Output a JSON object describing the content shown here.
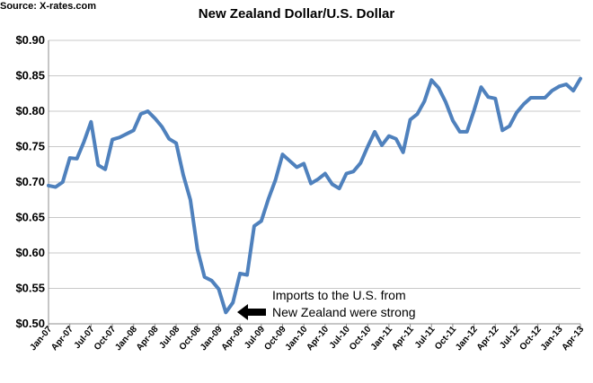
{
  "source": "Source: X-rates.com",
  "chart_data": {
    "type": "line",
    "title": "New Zealand Dollar/U.S. Dollar",
    "xlabel": "",
    "ylabel": "",
    "ylim": [
      0.5,
      0.9
    ],
    "yticks": [
      "$0.90",
      "$0.85",
      "$0.80",
      "$0.75",
      "$0.70",
      "$0.65",
      "$0.60",
      "$0.55",
      "$0.50"
    ],
    "ytick_values": [
      0.9,
      0.85,
      0.8,
      0.75,
      0.7,
      0.65,
      0.6,
      0.55,
      0.5
    ],
    "grid": true,
    "x_tick_labels": [
      "Jan-07",
      "Apr-07",
      "Jul-07",
      "Oct-07",
      "Jan-08",
      "Apr-08",
      "Jul-08",
      "Oct-08",
      "Jan-09",
      "Apr-09",
      "Jul-09",
      "Oct-09",
      "Jan-10",
      "Apr-10",
      "Jul-10",
      "Oct-10",
      "Jan-11",
      "Apr-11",
      "Jul-11",
      "Oct-11",
      "Jan-12",
      "Apr-12",
      "Jul-12",
      "Oct-12",
      "Jan-13",
      "Apr-13"
    ],
    "x": [
      "Jan-07",
      "Feb-07",
      "Mar-07",
      "Apr-07",
      "May-07",
      "Jun-07",
      "Jul-07",
      "Aug-07",
      "Sep-07",
      "Oct-07",
      "Nov-07",
      "Dec-07",
      "Jan-08",
      "Feb-08",
      "Mar-08",
      "Apr-08",
      "May-08",
      "Jun-08",
      "Jul-08",
      "Aug-08",
      "Sep-08",
      "Oct-08",
      "Nov-08",
      "Dec-08",
      "Jan-09",
      "Feb-09",
      "Mar-09",
      "Apr-09",
      "May-09",
      "Jun-09",
      "Jul-09",
      "Aug-09",
      "Sep-09",
      "Oct-09",
      "Nov-09",
      "Dec-09",
      "Jan-10",
      "Feb-10",
      "Mar-10",
      "Apr-10",
      "May-10",
      "Jun-10",
      "Jul-10",
      "Aug-10",
      "Sep-10",
      "Oct-10",
      "Nov-10",
      "Dec-10",
      "Jan-11",
      "Feb-11",
      "Mar-11",
      "Apr-11",
      "May-11",
      "Jun-11",
      "Jul-11",
      "Aug-11",
      "Sep-11",
      "Oct-11",
      "Nov-11",
      "Dec-11",
      "Jan-12",
      "Feb-12",
      "Mar-12",
      "Apr-12",
      "May-12",
      "Jun-12",
      "Jul-12",
      "Aug-12",
      "Sep-12",
      "Oct-12",
      "Nov-12",
      "Dec-12",
      "Jan-13",
      "Feb-13",
      "Mar-13",
      "Apr-13"
    ],
    "series": [
      {
        "color": "#4F81BD",
        "values": [
          0.695,
          0.693,
          0.7,
          0.734,
          0.733,
          0.757,
          0.785,
          0.724,
          0.718,
          0.76,
          0.763,
          0.768,
          0.773,
          0.796,
          0.8,
          0.79,
          0.778,
          0.761,
          0.755,
          0.71,
          0.675,
          0.605,
          0.566,
          0.561,
          0.549,
          0.516,
          0.53,
          0.571,
          0.569,
          0.638,
          0.645,
          0.676,
          0.703,
          0.739,
          0.73,
          0.721,
          0.726,
          0.698,
          0.704,
          0.712,
          0.697,
          0.691,
          0.712,
          0.715,
          0.727,
          0.75,
          0.771,
          0.752,
          0.765,
          0.761,
          0.742,
          0.788,
          0.796,
          0.814,
          0.844,
          0.833,
          0.813,
          0.787,
          0.771,
          0.771,
          0.801,
          0.834,
          0.82,
          0.818,
          0.773,
          0.779,
          0.798,
          0.81,
          0.819,
          0.819,
          0.819,
          0.829,
          0.835,
          0.838,
          0.829,
          0.846
        ]
      }
    ],
    "annotations": [
      {
        "text_lines": [
          "Imports to the U.S. from",
          "New Zealand were strong"
        ],
        "arrow": "left",
        "points_to": "Feb-09"
      }
    ]
  }
}
